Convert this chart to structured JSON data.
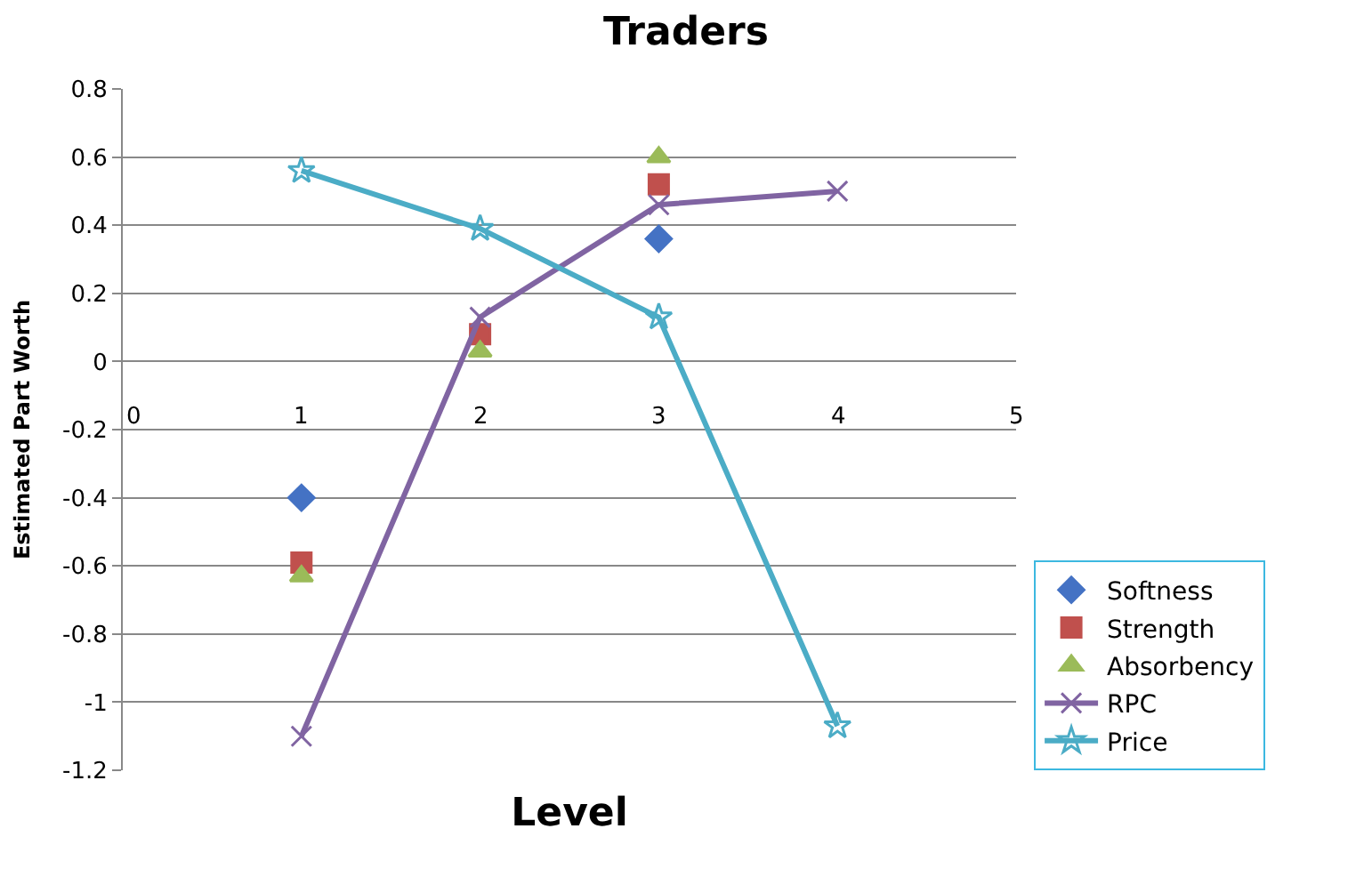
{
  "chart_data": {
    "type": "scatter",
    "title": "Traders",
    "xlabel": "Level",
    "ylabel": "Estimated Part Worth",
    "x": [
      1,
      2,
      3,
      4
    ],
    "series": [
      {
        "name": "Softness",
        "color": "#4472c4",
        "marker": "diamond",
        "values": [
          -0.4,
          null,
          0.36,
          null
        ]
      },
      {
        "name": "Strength",
        "color": "#c0504d",
        "marker": "square",
        "values": [
          -0.59,
          0.08,
          0.52,
          null
        ]
      },
      {
        "name": "Absorbency",
        "color": "#9bbb59",
        "marker": "triangle",
        "values": [
          -0.63,
          0.03,
          0.6,
          null
        ]
      },
      {
        "name": "RPC",
        "type": "line",
        "color": "#8064a2",
        "marker": "cross",
        "values": [
          -1.1,
          0.13,
          0.46,
          0.5
        ]
      },
      {
        "name": "Price",
        "type": "line",
        "color": "#4bacc6",
        "marker": "star",
        "values": [
          0.56,
          0.39,
          0.13,
          -1.07
        ]
      }
    ],
    "xlim": [
      0,
      5
    ],
    "xticks": [
      0,
      1,
      2,
      3,
      4,
      5
    ],
    "ylim": [
      -1.2,
      0.8
    ],
    "yticks": [
      -1.2,
      -1,
      -0.8,
      -0.6,
      -0.4,
      -0.2,
      0,
      0.2,
      0.4,
      0.6,
      0.8
    ],
    "grid": "y",
    "legend": "bottom right"
  }
}
